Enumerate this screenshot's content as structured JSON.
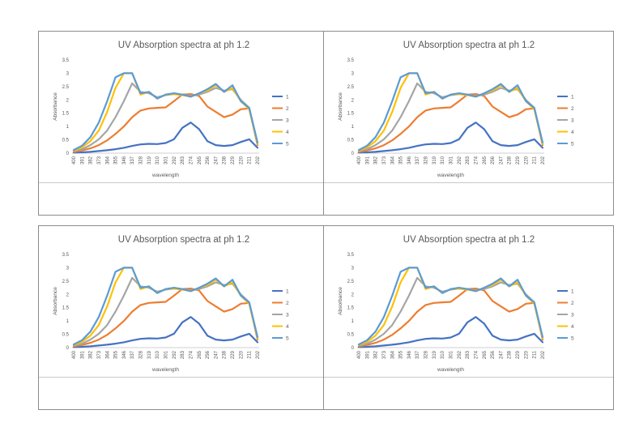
{
  "panels_label": "UV absorption chart panels",
  "chart_data": [
    {
      "type": "line",
      "title": "UV Absorption spectra at ph 1.2",
      "xlabel": "wavelength",
      "ylabel": "Absorbance",
      "ylim": [
        0,
        3.5
      ],
      "yticks": [
        "0",
        "0.5",
        "1",
        "1.5",
        "2",
        "2.5",
        "3",
        "3.5"
      ],
      "categories": [
        "400",
        "391",
        "382",
        "373",
        "364",
        "355",
        "346",
        "337",
        "328",
        "319",
        "310",
        "301",
        "292",
        "283",
        "274",
        "265",
        "256",
        "247",
        "238",
        "229",
        "220",
        "211",
        "202"
      ],
      "legend_position": "right",
      "series": [
        {
          "name": "1",
          "color": "#4472c4",
          "values": [
            0.02,
            0.03,
            0.05,
            0.08,
            0.11,
            0.15,
            0.2,
            0.27,
            0.33,
            0.35,
            0.34,
            0.38,
            0.52,
            0.95,
            1.15,
            0.9,
            0.45,
            0.3,
            0.27,
            0.3,
            0.42,
            0.52,
            0.2
          ]
        },
        {
          "name": "2",
          "color": "#ed7d31",
          "values": [
            0.05,
            0.1,
            0.18,
            0.3,
            0.48,
            0.72,
            1.0,
            1.35,
            1.6,
            1.68,
            1.7,
            1.72,
            1.95,
            2.2,
            2.22,
            2.15,
            1.75,
            1.55,
            1.35,
            1.45,
            1.65,
            1.68,
            0.3
          ]
        },
        {
          "name": "3",
          "color": "#a5a5a5",
          "values": [
            0.08,
            0.15,
            0.3,
            0.52,
            0.85,
            1.35,
            1.95,
            2.62,
            2.3,
            2.25,
            2.1,
            2.18,
            2.22,
            2.2,
            2.15,
            2.2,
            2.3,
            2.45,
            2.35,
            2.4,
            2.0,
            1.7,
            0.35
          ]
        },
        {
          "name": "4",
          "color": "#ffc000",
          "values": [
            0.1,
            0.22,
            0.45,
            0.85,
            1.55,
            2.45,
            3.0,
            3.0,
            2.2,
            2.3,
            2.05,
            2.2,
            2.22,
            2.18,
            2.12,
            2.25,
            2.35,
            2.55,
            2.3,
            2.45,
            1.95,
            1.65,
            0.35
          ]
        },
        {
          "name": "5",
          "color": "#5b9bd5",
          "values": [
            0.12,
            0.28,
            0.6,
            1.15,
            1.95,
            2.85,
            3.0,
            3.0,
            2.25,
            2.3,
            2.05,
            2.2,
            2.25,
            2.2,
            2.12,
            2.25,
            2.4,
            2.6,
            2.3,
            2.55,
            1.95,
            1.7,
            0.4
          ]
        }
      ]
    },
    {
      "type": "line",
      "title": "UV Absorption spectra at ph 1.2",
      "xlabel": "wavelength",
      "ylabel": "Absorbance",
      "ylim": [
        0,
        3.5
      ],
      "yticks": [
        "0",
        "0.5",
        "1",
        "1.5",
        "2",
        "2.5",
        "3",
        "3.5"
      ],
      "categories": [
        "400",
        "391",
        "382",
        "373",
        "364",
        "355",
        "346",
        "337",
        "328",
        "319",
        "310",
        "301",
        "292",
        "283",
        "274",
        "265",
        "256",
        "247",
        "238",
        "229",
        "220",
        "211",
        "202"
      ],
      "legend_position": "right",
      "series": [
        {
          "name": "1",
          "color": "#4472c4",
          "values": [
            0.02,
            0.03,
            0.05,
            0.08,
            0.11,
            0.15,
            0.2,
            0.27,
            0.33,
            0.35,
            0.34,
            0.38,
            0.52,
            0.95,
            1.15,
            0.9,
            0.45,
            0.3,
            0.27,
            0.3,
            0.42,
            0.52,
            0.2
          ]
        },
        {
          "name": "2",
          "color": "#ed7d31",
          "values": [
            0.05,
            0.1,
            0.18,
            0.3,
            0.48,
            0.72,
            1.0,
            1.35,
            1.6,
            1.68,
            1.7,
            1.72,
            1.95,
            2.2,
            2.22,
            2.15,
            1.75,
            1.55,
            1.35,
            1.45,
            1.65,
            1.68,
            0.3
          ]
        },
        {
          "name": "3",
          "color": "#a5a5a5",
          "values": [
            0.08,
            0.15,
            0.3,
            0.52,
            0.85,
            1.35,
            1.95,
            2.62,
            2.3,
            2.25,
            2.1,
            2.18,
            2.22,
            2.2,
            2.15,
            2.2,
            2.3,
            2.45,
            2.35,
            2.4,
            2.0,
            1.7,
            0.35
          ]
        },
        {
          "name": "4",
          "color": "#ffc000",
          "values": [
            0.1,
            0.22,
            0.45,
            0.85,
            1.55,
            2.45,
            3.0,
            3.0,
            2.2,
            2.3,
            2.05,
            2.2,
            2.22,
            2.18,
            2.12,
            2.25,
            2.35,
            2.55,
            2.3,
            2.45,
            1.95,
            1.65,
            0.35
          ]
        },
        {
          "name": "5",
          "color": "#5b9bd5",
          "values": [
            0.12,
            0.28,
            0.6,
            1.15,
            1.95,
            2.85,
            3.0,
            3.0,
            2.25,
            2.3,
            2.05,
            2.2,
            2.25,
            2.2,
            2.12,
            2.25,
            2.4,
            2.6,
            2.3,
            2.55,
            1.95,
            1.7,
            0.4
          ]
        }
      ]
    },
    {
      "type": "line",
      "title": "UV Absorption spectra at ph 1.2",
      "xlabel": "wavelength",
      "ylabel": "Absorbance",
      "ylim": [
        0,
        3.5
      ],
      "yticks": [
        "0",
        "0.5",
        "1",
        "1.5",
        "2",
        "2.5",
        "3",
        "3.5"
      ],
      "categories": [
        "400",
        "391",
        "382",
        "373",
        "364",
        "355",
        "346",
        "337",
        "328",
        "319",
        "310",
        "301",
        "292",
        "283",
        "274",
        "265",
        "256",
        "247",
        "238",
        "229",
        "220",
        "211",
        "202"
      ],
      "legend_position": "right",
      "series": [
        {
          "name": "1",
          "color": "#4472c4",
          "values": [
            0.02,
            0.03,
            0.05,
            0.08,
            0.11,
            0.15,
            0.2,
            0.27,
            0.33,
            0.35,
            0.34,
            0.38,
            0.52,
            0.95,
            1.15,
            0.9,
            0.45,
            0.3,
            0.27,
            0.3,
            0.42,
            0.52,
            0.2
          ]
        },
        {
          "name": "2",
          "color": "#ed7d31",
          "values": [
            0.05,
            0.1,
            0.18,
            0.3,
            0.48,
            0.72,
            1.0,
            1.35,
            1.6,
            1.68,
            1.7,
            1.72,
            1.95,
            2.2,
            2.22,
            2.15,
            1.75,
            1.55,
            1.35,
            1.45,
            1.65,
            1.68,
            0.3
          ]
        },
        {
          "name": "3",
          "color": "#a5a5a5",
          "values": [
            0.08,
            0.15,
            0.3,
            0.52,
            0.85,
            1.35,
            1.95,
            2.62,
            2.3,
            2.25,
            2.1,
            2.18,
            2.22,
            2.2,
            2.15,
            2.2,
            2.3,
            2.45,
            2.35,
            2.4,
            2.0,
            1.7,
            0.35
          ]
        },
        {
          "name": "4",
          "color": "#ffc000",
          "values": [
            0.1,
            0.22,
            0.45,
            0.85,
            1.55,
            2.45,
            3.0,
            3.0,
            2.2,
            2.3,
            2.05,
            2.2,
            2.22,
            2.18,
            2.12,
            2.25,
            2.35,
            2.55,
            2.3,
            2.45,
            1.95,
            1.65,
            0.35
          ]
        },
        {
          "name": "5",
          "color": "#5b9bd5",
          "values": [
            0.12,
            0.28,
            0.6,
            1.15,
            1.95,
            2.85,
            3.0,
            3.0,
            2.25,
            2.3,
            2.05,
            2.2,
            2.25,
            2.2,
            2.12,
            2.25,
            2.4,
            2.6,
            2.3,
            2.55,
            1.95,
            1.7,
            0.4
          ]
        }
      ]
    },
    {
      "type": "line",
      "title": "UV Absorption spectra at ph 1.2",
      "xlabel": "wavelength",
      "ylabel": "Absorbance",
      "ylim": [
        0,
        3.5
      ],
      "yticks": [
        "0",
        "0.5",
        "1",
        "1.5",
        "2",
        "2.5",
        "3",
        "3.5"
      ],
      "categories": [
        "400",
        "391",
        "382",
        "373",
        "364",
        "355",
        "346",
        "337",
        "328",
        "319",
        "310",
        "301",
        "292",
        "283",
        "274",
        "265",
        "256",
        "247",
        "238",
        "229",
        "220",
        "211",
        "202"
      ],
      "legend_position": "right",
      "series": [
        {
          "name": "1",
          "color": "#4472c4",
          "values": [
            0.02,
            0.03,
            0.05,
            0.08,
            0.11,
            0.15,
            0.2,
            0.27,
            0.33,
            0.35,
            0.34,
            0.38,
            0.52,
            0.95,
            1.15,
            0.9,
            0.45,
            0.3,
            0.27,
            0.3,
            0.42,
            0.52,
            0.2
          ]
        },
        {
          "name": "2",
          "color": "#ed7d31",
          "values": [
            0.05,
            0.1,
            0.18,
            0.3,
            0.48,
            0.72,
            1.0,
            1.35,
            1.6,
            1.68,
            1.7,
            1.72,
            1.95,
            2.2,
            2.22,
            2.15,
            1.75,
            1.55,
            1.35,
            1.45,
            1.65,
            1.68,
            0.3
          ]
        },
        {
          "name": "3",
          "color": "#a5a5a5",
          "values": [
            0.08,
            0.15,
            0.3,
            0.52,
            0.85,
            1.35,
            1.95,
            2.62,
            2.3,
            2.25,
            2.1,
            2.18,
            2.22,
            2.2,
            2.15,
            2.2,
            2.3,
            2.45,
            2.35,
            2.4,
            2.0,
            1.7,
            0.35
          ]
        },
        {
          "name": "4",
          "color": "#ffc000",
          "values": [
            0.1,
            0.22,
            0.45,
            0.85,
            1.55,
            2.45,
            3.0,
            3.0,
            2.2,
            2.3,
            2.05,
            2.2,
            2.22,
            2.18,
            2.12,
            2.25,
            2.35,
            2.55,
            2.3,
            2.45,
            1.95,
            1.65,
            0.35
          ]
        },
        {
          "name": "5",
          "color": "#5b9bd5",
          "values": [
            0.12,
            0.28,
            0.6,
            1.15,
            1.95,
            2.85,
            3.0,
            3.0,
            2.25,
            2.3,
            2.05,
            2.2,
            2.25,
            2.2,
            2.12,
            2.25,
            2.4,
            2.6,
            2.3,
            2.55,
            1.95,
            1.7,
            0.4
          ]
        }
      ]
    }
  ]
}
